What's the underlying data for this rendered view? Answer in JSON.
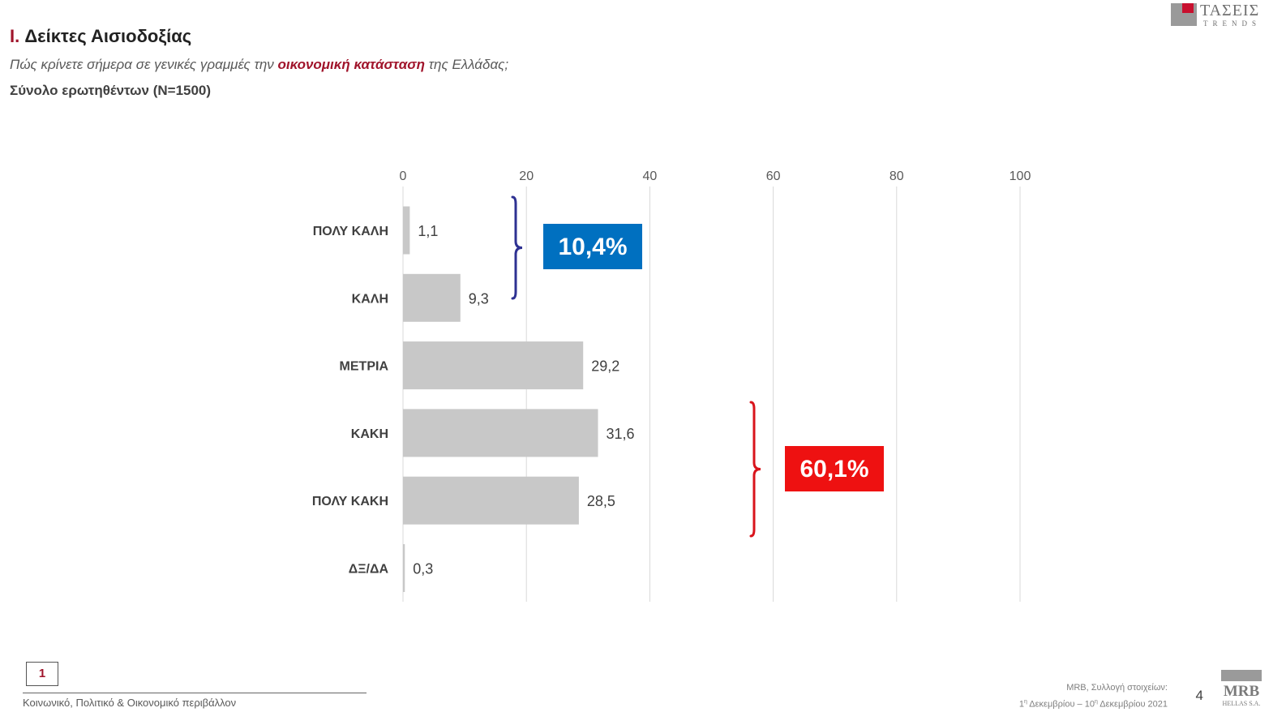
{
  "header": {
    "section_num": "I.",
    "section_title": "Δείκτες Αισιοδοξίας",
    "question_pre": "Πώς κρίνετε σήμερα σε γενικές γραμμές την ",
    "question_highlight": "οικονομική κατάσταση",
    "question_post": " της Ελλάδας;",
    "base": "Σύνολο ερωτηθέντων (N=1500)"
  },
  "logo_top": {
    "word": "ΤΑΣΕΙΣ",
    "sub": "TRENDS"
  },
  "chart_data": {
    "type": "bar",
    "orientation": "horizontal",
    "categories": [
      "ΠΟΛΥ ΚΑΛΗ",
      "ΚΑΛΗ",
      "ΜΕΤΡΙΑ",
      "ΚΑΚΗ",
      "ΠΟΛΥ ΚΑΚΗ",
      "ΔΞ/ΔΑ"
    ],
    "values": [
      1.1,
      9.3,
      29.2,
      31.6,
      28.5,
      0.3
    ],
    "value_labels": [
      "1,1",
      "9,3",
      "29,2",
      "31,6",
      "28,5",
      "0,3"
    ],
    "xlim": [
      0,
      100
    ],
    "xticks": [
      0,
      20,
      40,
      60,
      80,
      100
    ],
    "axis_position": "top",
    "grid": true,
    "bar_color": "#c8c8c8",
    "annotations": [
      {
        "label": "10,4%",
        "spans": [
          "ΠΟΛΥ ΚΑΛΗ",
          "ΚΑΛΗ"
        ],
        "color": "#0070c0",
        "bracket_color": "#2e3192"
      },
      {
        "label": "60,1%",
        "spans": [
          "ΚΑΚΗ",
          "ΠΟΛΥ ΚΑΚΗ"
        ],
        "color": "#ee1111",
        "bracket_color": "#d9141c"
      }
    ]
  },
  "footer": {
    "page_box": "1",
    "section_label": "Κοινωνικό, Πολιτικό & Οικονομικό περιβάλλον",
    "source_line1": "MRB, Συλλογή στοιχείων:",
    "source_start_day": "1",
    "source_start_sup": "η",
    "source_start_rest": " Δεκεμβρίου – ",
    "source_end_day": "10",
    "source_end_sup": "η",
    "source_end_rest": " Δεκεμβρίου 2021",
    "page_number": "4"
  },
  "logo_mrb": {
    "word": "MRB",
    "sub": "HELLAS S.A."
  }
}
